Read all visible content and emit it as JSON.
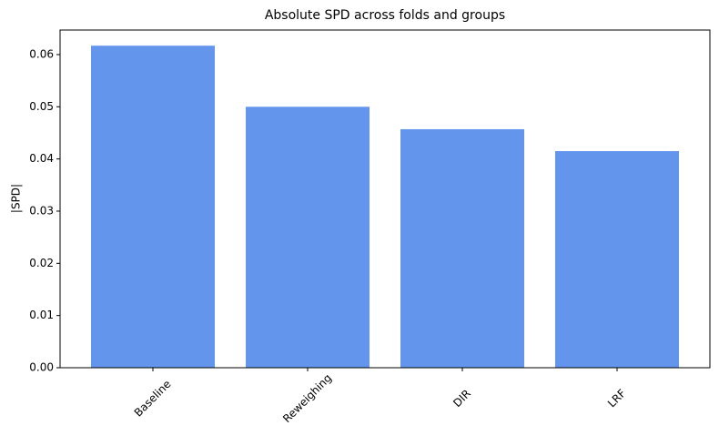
{
  "chart_data": {
    "type": "bar",
    "title": "Absolute SPD across folds and groups",
    "y_label": "|SPD|",
    "categories": [
      "Baseline",
      "Reweighing",
      "DIR",
      "LRF"
    ],
    "values": [
      0.0617,
      0.05,
      0.0457,
      0.0415
    ],
    "color": "#6495ed",
    "ylim": [
      0,
      0.0647
    ],
    "yticks": [
      {
        "value": 0,
        "label": "0.00"
      },
      0.01,
      0.02,
      0.03,
      0.04,
      0.05,
      0.06
    ],
    "grid": false
  }
}
